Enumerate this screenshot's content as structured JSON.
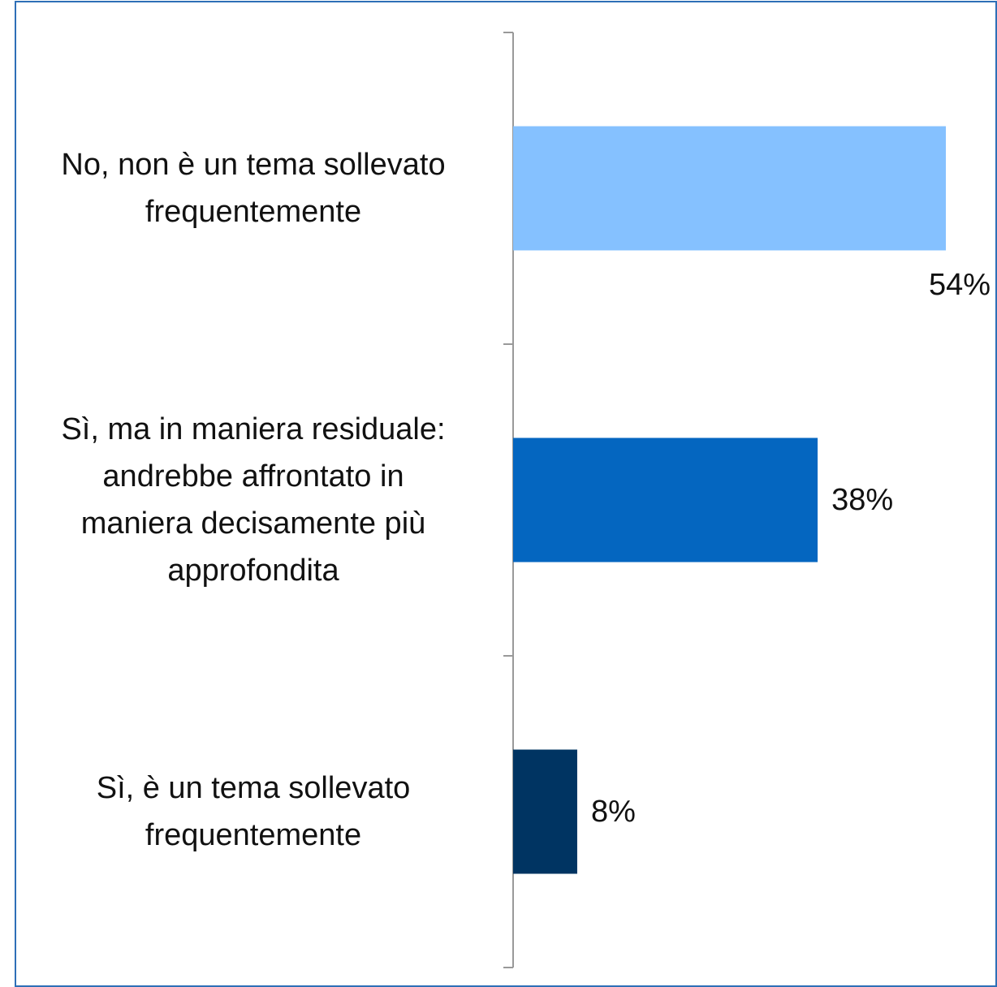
{
  "chart_data": {
    "type": "bar",
    "orientation": "horizontal",
    "categories": [
      "No, non è un tema sollevato\nfrequentemente",
      "Sì, ma in maniera residuale:\nandrebbe affrontato in\nmaniera decisamente più\napprofondita",
      "Sì, è un tema sollevato\nfrequentemente"
    ],
    "values": [
      54,
      38,
      8
    ],
    "value_labels": [
      "54%",
      "38%",
      "8%"
    ],
    "colors": [
      "#85c1ff",
      "#0466c0",
      "#003462"
    ]
  }
}
